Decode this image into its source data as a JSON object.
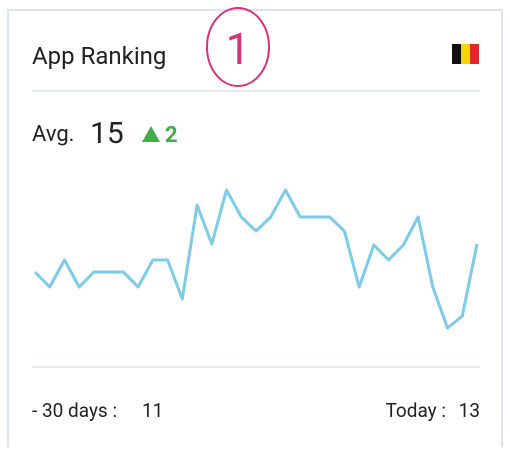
{
  "header": {
    "title": "App Ranking",
    "annotation": "1"
  },
  "avg": {
    "label": "Avg.",
    "value": "15",
    "change": "2"
  },
  "chart_data": {
    "type": "line",
    "color": "#7ecbe8",
    "values": [
      68,
      53,
      80,
      53,
      68,
      68,
      68,
      53,
      80,
      80,
      41,
      135,
      96,
      150,
      123,
      109,
      123,
      150,
      123,
      123,
      123,
      109,
      53,
      95,
      80,
      95,
      123,
      53,
      12,
      24,
      96
    ]
  },
  "footer": {
    "start_label": "- 30 days :",
    "start_value": "11",
    "end_label": "Today :",
    "end_value": "13"
  }
}
